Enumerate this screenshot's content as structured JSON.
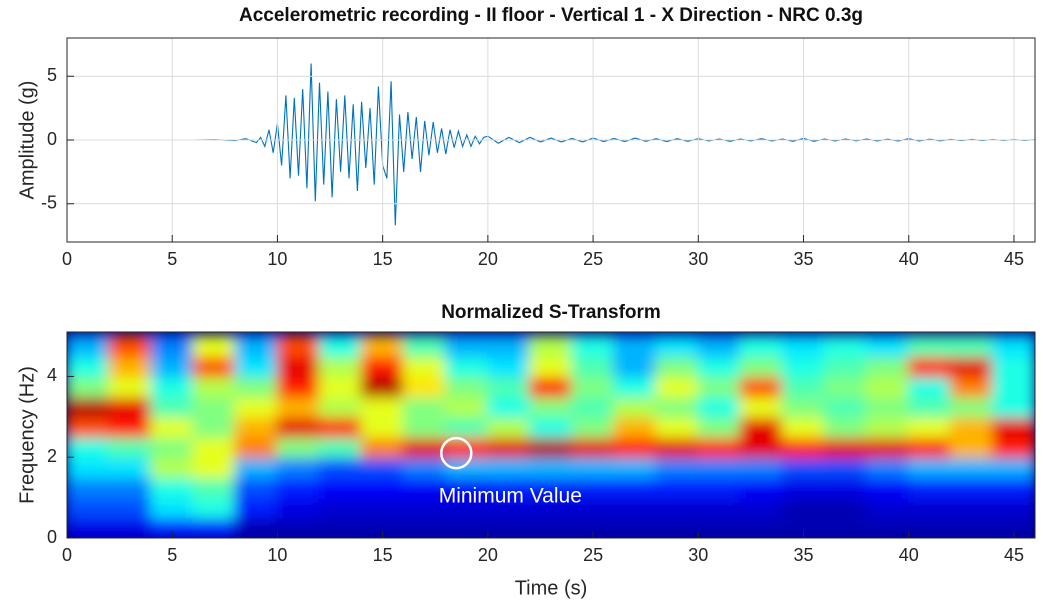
{
  "chart_data": [
    {
      "type": "line",
      "title": "Accelerometric recording - II floor - Vertical 1 - X Direction - NRC 0.3g",
      "y_label": "Amplitude (g)",
      "xlim": [
        0,
        46
      ],
      "ylim": [
        -8,
        8
      ],
      "xticks": [
        0,
        5,
        10,
        15,
        20,
        25,
        30,
        35,
        40,
        45
      ],
      "yticks": [
        -5,
        0,
        5
      ],
      "grid": true,
      "series": [
        {
          "color": "#0072bd",
          "x": [
            0,
            2,
            4,
            6,
            7,
            8,
            8.5,
            9,
            9.2,
            9.4,
            9.6,
            9.8,
            10,
            10.2,
            10.4,
            10.6,
            10.8,
            11,
            11.2,
            11.4,
            11.6,
            11.8,
            12,
            12.2,
            12.4,
            12.6,
            12.8,
            13,
            13.2,
            13.4,
            13.6,
            13.8,
            14,
            14.2,
            14.4,
            14.6,
            14.8,
            15,
            15.2,
            15.4,
            15.6,
            15.8,
            16,
            16.2,
            16.4,
            16.6,
            16.8,
            17,
            17.2,
            17.4,
            17.6,
            17.8,
            18,
            18.2,
            18.4,
            18.6,
            18.8,
            19,
            19.2,
            19.4,
            19.6,
            19.8,
            20,
            20.5,
            21,
            21.5,
            22,
            22.5,
            23,
            23.5,
            24,
            24.5,
            25,
            25.5,
            26,
            26.5,
            27,
            27.5,
            28,
            28.5,
            29,
            29.5,
            30,
            30.5,
            31,
            31.5,
            32,
            32.5,
            33,
            33.5,
            34,
            34.5,
            35,
            35.5,
            36,
            36.5,
            37,
            37.5,
            38,
            38.5,
            39,
            39.5,
            40,
            40.5,
            41,
            41.5,
            42,
            42.5,
            43,
            43.5,
            44,
            44.5,
            45,
            45.5,
            46
          ],
          "values": [
            0,
            0,
            0,
            0,
            0.02,
            -0.05,
            0.1,
            -0.2,
            0.2,
            -0.5,
            0.8,
            -1.0,
            1.3,
            -2.0,
            3.5,
            -3.0,
            3.3,
            -2.8,
            4.0,
            -3.8,
            6.0,
            -4.8,
            4.5,
            -3.5,
            3.8,
            -4.5,
            3.2,
            -2.5,
            3.5,
            -3.0,
            2.8,
            -4.0,
            3.0,
            -2.2,
            2.5,
            -3.5,
            4.2,
            -2.0,
            -3.0,
            4.6,
            -6.7,
            2.0,
            -2.5,
            2.2,
            -1.5,
            1.8,
            -2.5,
            1.5,
            -1.2,
            1.4,
            -1.0,
            0.9,
            -1.1,
            0.8,
            -0.6,
            0.7,
            -0.5,
            0.4,
            -0.5,
            0.3,
            -0.3,
            0.2,
            0.3,
            -0.25,
            0.2,
            -0.2,
            0.2,
            -0.15,
            0.15,
            -0.15,
            0.12,
            -0.15,
            0.15,
            -0.12,
            0.12,
            -0.12,
            0.15,
            -0.1,
            0.1,
            -0.12,
            0.1,
            -0.1,
            0.1,
            -0.08,
            0.08,
            -0.1,
            0.08,
            -0.08,
            0.1,
            -0.08,
            0.08,
            -0.1,
            0.12,
            -0.1,
            0.08,
            -0.08,
            0.08,
            -0.06,
            0.08,
            -0.08,
            0.06,
            -0.08,
            0.1,
            -0.08,
            0.06,
            -0.06,
            0.05,
            -0.05,
            0.05,
            -0.05,
            0.04,
            -0.04,
            0.03,
            -0.03,
            0.02
          ]
        }
      ]
    },
    {
      "type": "heatmap",
      "title": "Normalized S-Transform",
      "x_label": "Time (s)",
      "y_label": "Frequency (Hz)",
      "xlim": [
        0,
        46
      ],
      "ylim": [
        0,
        5.1
      ],
      "xticks": [
        0,
        5,
        10,
        15,
        20,
        25,
        30,
        35,
        40,
        45
      ],
      "yticks": [
        0,
        2,
        4
      ],
      "grid": false,
      "colormap": "jet",
      "x": [
        1,
        3,
        5,
        7,
        9,
        11,
        13,
        15,
        17,
        19,
        21,
        23,
        25,
        27,
        29,
        31,
        33,
        35,
        37,
        39,
        41,
        43,
        45
      ],
      "y": [
        0.25,
        0.75,
        1.25,
        1.75,
        2.25,
        2.75,
        3.25,
        3.75,
        4.25,
        4.75
      ],
      "z": [
        [
          0.1,
          0.1,
          0.15,
          0.15,
          0.05,
          0.05,
          0.05,
          0.05,
          0.05,
          0.05,
          0.05,
          0.05,
          0.05,
          0.05,
          0.05,
          0.05,
          0.05,
          0.05,
          0.05,
          0.05,
          0.05,
          0.05,
          0.05
        ],
        [
          0.2,
          0.2,
          0.35,
          0.4,
          0.15,
          0.1,
          0.08,
          0.08,
          0.08,
          0.08,
          0.08,
          0.08,
          0.08,
          0.08,
          0.08,
          0.08,
          0.08,
          0.05,
          0.05,
          0.08,
          0.08,
          0.08,
          0.08
        ],
        [
          0.25,
          0.25,
          0.4,
          0.45,
          0.2,
          0.15,
          0.12,
          0.12,
          0.12,
          0.12,
          0.15,
          0.15,
          0.15,
          0.15,
          0.15,
          0.15,
          0.12,
          0.1,
          0.1,
          0.12,
          0.15,
          0.15,
          0.15
        ],
        [
          0.35,
          0.35,
          0.55,
          0.6,
          0.3,
          0.25,
          0.2,
          0.2,
          0.25,
          0.3,
          0.3,
          0.3,
          0.3,
          0.3,
          0.25,
          0.25,
          0.25,
          0.2,
          0.2,
          0.25,
          0.3,
          0.3,
          0.3
        ],
        [
          0.4,
          0.45,
          0.5,
          0.6,
          0.75,
          0.5,
          0.45,
          0.75,
          0.9,
          0.85,
          0.9,
          0.95,
          0.9,
          0.85,
          0.9,
          0.85,
          0.9,
          0.85,
          0.9,
          0.9,
          0.85,
          0.7,
          0.85
        ],
        [
          0.8,
          0.85,
          0.6,
          0.5,
          0.7,
          0.9,
          0.85,
          0.6,
          0.5,
          0.45,
          0.55,
          0.4,
          0.5,
          0.7,
          0.6,
          0.5,
          0.9,
          0.6,
          0.5,
          0.55,
          0.6,
          0.7,
          0.9
        ],
        [
          0.95,
          0.9,
          0.45,
          0.5,
          0.6,
          0.7,
          0.55,
          0.6,
          0.5,
          0.55,
          0.4,
          0.5,
          0.45,
          0.55,
          0.5,
          0.4,
          0.6,
          0.5,
          0.45,
          0.5,
          0.45,
          0.5,
          0.4
        ],
        [
          0.5,
          0.6,
          0.4,
          0.55,
          0.5,
          0.85,
          0.6,
          0.95,
          0.65,
          0.5,
          0.45,
          0.85,
          0.5,
          0.4,
          0.6,
          0.5,
          0.8,
          0.45,
          0.5,
          0.55,
          0.4,
          0.75,
          0.4
        ],
        [
          0.4,
          0.7,
          0.3,
          0.8,
          0.35,
          0.9,
          0.55,
          0.85,
          0.6,
          0.4,
          0.35,
          0.6,
          0.45,
          0.3,
          0.5,
          0.4,
          0.5,
          0.4,
          0.45,
          0.5,
          0.85,
          0.9,
          0.4
        ],
        [
          0.3,
          0.8,
          0.25,
          0.6,
          0.3,
          0.8,
          0.4,
          0.7,
          0.45,
          0.3,
          0.3,
          0.55,
          0.4,
          0.3,
          0.35,
          0.3,
          0.4,
          0.35,
          0.4,
          0.35,
          0.45,
          0.45,
          0.35
        ]
      ],
      "annotation": {
        "text": "Minimum Value",
        "x": 18.5,
        "y": 2.1
      }
    }
  ]
}
